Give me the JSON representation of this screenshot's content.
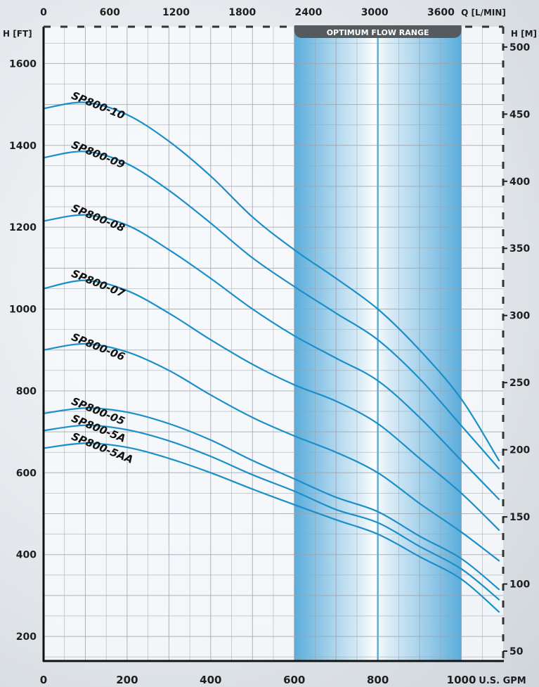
{
  "chart_data": {
    "type": "line",
    "x_axis_bottom": {
      "label": "U.S. GPM",
      "range": [
        0,
        1100
      ],
      "ticks": [
        0,
        200,
        400,
        600,
        800,
        1000
      ]
    },
    "x_axis_top": {
      "label": "Q [L/MIN]",
      "ticks": [
        0,
        600,
        1200,
        1800,
        2400,
        3000,
        3600
      ]
    },
    "y_axis_left": {
      "label": "H [FT]",
      "range": [
        140,
        1690
      ],
      "ticks": [
        200,
        400,
        600,
        800,
        1000,
        1200,
        1400,
        1600
      ]
    },
    "y_axis_right": {
      "label": "H [M]",
      "ticks": [
        50,
        100,
        150,
        200,
        250,
        300,
        350,
        400,
        450,
        500
      ]
    },
    "grid": true,
    "highlight_band": {
      "label": "OPTIMUM FLOW RANGE",
      "x_range": [
        600,
        1000
      ],
      "center": 800,
      "color": "#3fa0d8"
    },
    "line_color": "#1a8fc9",
    "series": [
      {
        "name": "SP800-10",
        "x": [
          0,
          100,
          200,
          300,
          400,
          500,
          600,
          700,
          800,
          900,
          1000,
          1090
        ],
        "y": [
          1490,
          1505,
          1475,
          1410,
          1325,
          1225,
          1145,
          1075,
          1000,
          900,
          780,
          630
        ]
      },
      {
        "name": "SP800-09",
        "x": [
          0,
          100,
          200,
          300,
          400,
          500,
          600,
          700,
          800,
          900,
          1000,
          1090
        ],
        "y": [
          1370,
          1385,
          1355,
          1290,
          1210,
          1125,
          1055,
          990,
          925,
          830,
          715,
          610
        ]
      },
      {
        "name": "SP800-08",
        "x": [
          0,
          100,
          200,
          300,
          400,
          500,
          600,
          700,
          800,
          900,
          1000,
          1090
        ],
        "y": [
          1215,
          1230,
          1205,
          1145,
          1075,
          1000,
          935,
          880,
          825,
          735,
          630,
          535
        ]
      },
      {
        "name": "SP800-07",
        "x": [
          0,
          100,
          200,
          300,
          400,
          500,
          600,
          700,
          800,
          900,
          1000,
          1090
        ],
        "y": [
          1050,
          1070,
          1045,
          990,
          925,
          865,
          815,
          775,
          720,
          635,
          550,
          460
        ]
      },
      {
        "name": "SP800-06",
        "x": [
          0,
          100,
          200,
          300,
          400,
          500,
          600,
          700,
          800,
          900,
          1000,
          1090
        ],
        "y": [
          900,
          915,
          895,
          850,
          790,
          735,
          690,
          650,
          600,
          525,
          455,
          385
        ]
      },
      {
        "name": "SP800-05",
        "x": [
          0,
          100,
          200,
          300,
          400,
          500,
          600,
          700,
          800,
          900,
          1000,
          1090
        ],
        "y": [
          745,
          758,
          748,
          720,
          680,
          630,
          585,
          540,
          505,
          445,
          390,
          315
        ]
      },
      {
        "name": "SP800-5A",
        "x": [
          0,
          100,
          200,
          300,
          400,
          500,
          600,
          700,
          800,
          900,
          1000,
          1090
        ],
        "y": [
          703,
          716,
          705,
          678,
          640,
          595,
          555,
          510,
          478,
          420,
          365,
          290
        ]
      },
      {
        "name": "SP800-5AA",
        "x": [
          0,
          100,
          200,
          300,
          400,
          500,
          600,
          700,
          800,
          900,
          1000,
          1090
        ],
        "y": [
          660,
          672,
          662,
          635,
          600,
          560,
          522,
          485,
          450,
          395,
          340,
          260
        ]
      }
    ]
  }
}
